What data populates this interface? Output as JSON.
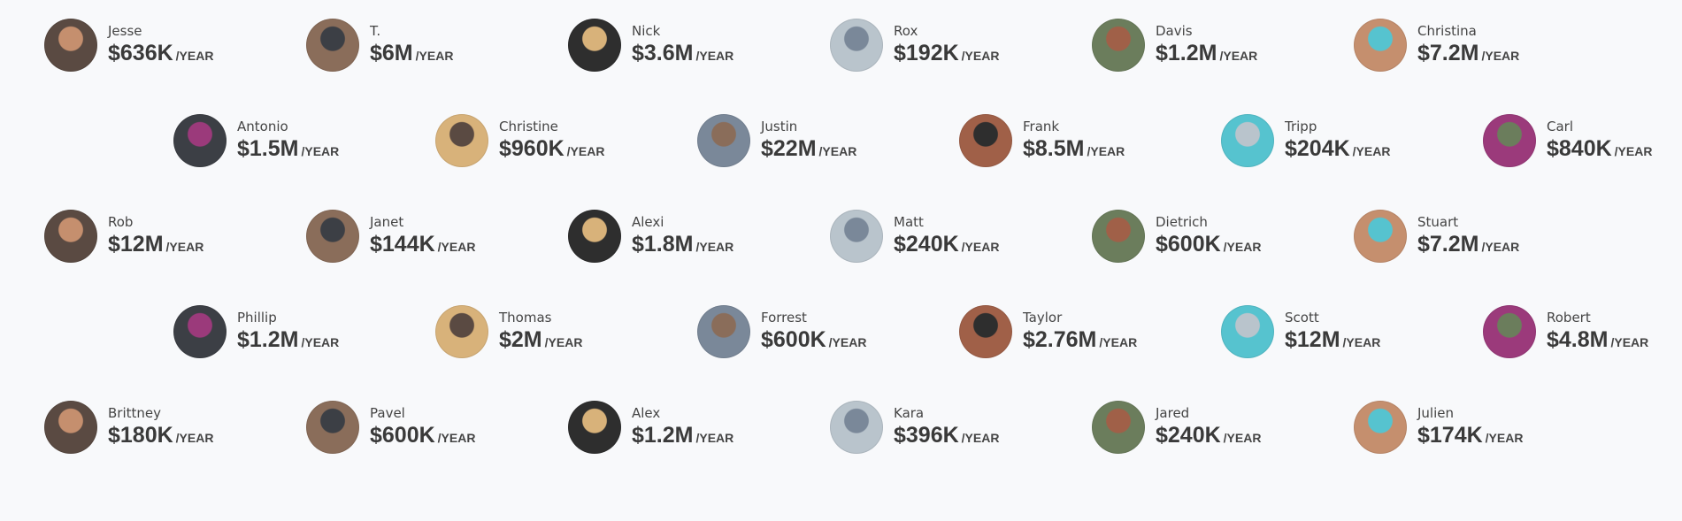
{
  "period_label": "/YEAR",
  "rows": [
    [
      {
        "name": "Jesse",
        "amount": "$636K"
      },
      {
        "name": "T.",
        "amount": "$6M"
      },
      {
        "name": "Nick",
        "amount": "$3.6M"
      },
      {
        "name": "Rox",
        "amount": "$192K"
      },
      {
        "name": "Davis",
        "amount": "$1.2M"
      },
      {
        "name": "Christina",
        "amount": "$7.2M"
      }
    ],
    [
      {
        "name": "Antonio",
        "amount": "$1.5M"
      },
      {
        "name": "Christine",
        "amount": "$960K"
      },
      {
        "name": "Justin",
        "amount": "$22M"
      },
      {
        "name": "Frank",
        "amount": "$8.5M"
      },
      {
        "name": "Tripp",
        "amount": "$204K"
      },
      {
        "name": "Carl",
        "amount": "$840K"
      }
    ],
    [
      {
        "name": "Rob",
        "amount": "$12M"
      },
      {
        "name": "Janet",
        "amount": "$144K"
      },
      {
        "name": "Alexi",
        "amount": "$1.8M"
      },
      {
        "name": "Matt",
        "amount": "$240K"
      },
      {
        "name": "Dietrich",
        "amount": "$600K"
      },
      {
        "name": "Stuart",
        "amount": "$7.2M"
      }
    ],
    [
      {
        "name": "Phillip",
        "amount": "$1.2M"
      },
      {
        "name": "Thomas",
        "amount": "$2M"
      },
      {
        "name": "Forrest",
        "amount": "$600K"
      },
      {
        "name": "Taylor",
        "amount": "$2.76M"
      },
      {
        "name": "Scott",
        "amount": "$12M"
      },
      {
        "name": "Robert",
        "amount": "$4.8M"
      }
    ],
    [
      {
        "name": "Brittney",
        "amount": "$180K"
      },
      {
        "name": "Pavel",
        "amount": "$600K"
      },
      {
        "name": "Alex",
        "amount": "$1.2M"
      },
      {
        "name": "Kara",
        "amount": "$396K"
      },
      {
        "name": "Jared",
        "amount": "$240K"
      },
      {
        "name": "Julien",
        "amount": "$174K"
      }
    ]
  ]
}
